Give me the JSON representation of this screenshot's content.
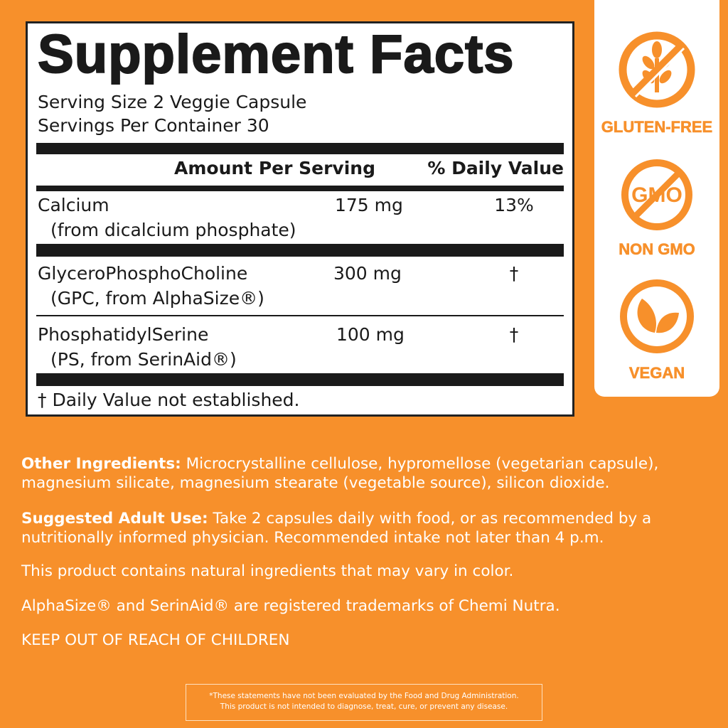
{
  "facts": {
    "title": "Supplement Facts",
    "serving_size": "Serving Size  2 Veggie Capsule",
    "servings_per_container": "Servings Per Container  30",
    "header_amount": "Amount Per Serving",
    "header_dv": "% Daily Value",
    "rows": [
      {
        "name": "Calcium",
        "sub": "(from dicalcium phosphate)",
        "amount": "175 mg",
        "dv": "13%"
      },
      {
        "name": "GlyceroPhosphoCholine",
        "sub": "(GPC, from AlphaSize®)",
        "amount": "300 mg",
        "dv": "†"
      },
      {
        "name": "PhosphatidylSerine",
        "sub": "(PS, from SerinAid®)",
        "amount": "100 mg",
        "dv": "†"
      }
    ],
    "footnote": "† Daily Value not established."
  },
  "badges": [
    {
      "icon": "no-gluten-wheat-icon",
      "label": "GLUTEN-FREE"
    },
    {
      "icon": "no-gmo-icon",
      "label": "NON GMO"
    },
    {
      "icon": "leaf-icon",
      "label": "VEGAN"
    }
  ],
  "text": {
    "other_label": "Other Ingredients:",
    "other": " Microcrystalline cellulose, hypromellose (vegetarian capsule), magnesium silicate, magnesium stearate (vegetable source), silicon dioxide.",
    "use_label": "Suggested Adult Use:",
    "use": " Take 2 capsules daily with food, or as recommended by a nutritionally informed physician. Recommended intake not later than 4 p.m.",
    "color_note": "This product contains natural ingredients that may vary in color.",
    "trademarks": "AlphaSize® and SerinAid® are registered trademarks of Chemi Nutra.",
    "keep_out": "KEEP OUT OF REACH OF CHILDREN"
  },
  "disclaimer": {
    "line1": "*These statements have not been evaluated by the Food and Drug Administration.",
    "line2": "This product is not intended to diagnose, treat, cure, or prevent any disease."
  },
  "colors": {
    "background": "#F7902B",
    "panel": "#FFFFFF",
    "text_dark": "#1A1A1A"
  }
}
